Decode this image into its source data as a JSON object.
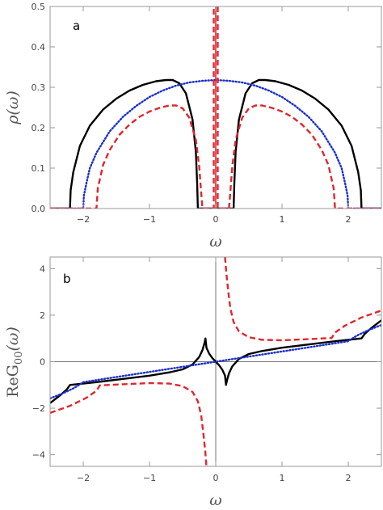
{
  "chart_data": [
    {
      "type": "line",
      "panel_label": "a",
      "xlabel": "ω",
      "ylabel": "ρ(ω)",
      "xlim": [
        -2.5,
        2.5
      ],
      "ylim": [
        0,
        0.5
      ],
      "xticks": [
        -2,
        -1,
        0,
        1,
        2
      ],
      "xtick_labels": [
        "−2",
        "−1",
        "0",
        "1",
        "2"
      ],
      "yticks": [
        0.0,
        0.1,
        0.2,
        0.3,
        0.4,
        0.5
      ],
      "ytick_labels": [
        "0.0",
        "0.1",
        "0.2",
        "0.3",
        "0.4",
        "0.5"
      ],
      "series": [
        {
          "style": "solid",
          "color": "#000000",
          "points": [
            [
              -2.5,
              0
            ],
            [
              -2.2,
              0
            ],
            [
              -2.19,
              0.045
            ],
            [
              -2.15,
              0.09
            ],
            [
              -2.05,
              0.155
            ],
            [
              -1.9,
              0.205
            ],
            [
              -1.7,
              0.245
            ],
            [
              -1.5,
              0.272
            ],
            [
              -1.3,
              0.292
            ],
            [
              -1.1,
              0.306
            ],
            [
              -0.9,
              0.315
            ],
            [
              -0.75,
              0.318
            ],
            [
              -0.65,
              0.318
            ],
            [
              -0.55,
              0.31
            ],
            [
              -0.45,
              0.285
            ],
            [
              -0.35,
              0.22
            ],
            [
              -0.3,
              0.14
            ],
            [
              -0.28,
              0.06
            ],
            [
              -0.27,
              0
            ],
            [
              -0.25,
              0
            ],
            [
              0.25,
              0
            ],
            [
              0.27,
              0
            ],
            [
              0.28,
              0.06
            ],
            [
              0.3,
              0.14
            ],
            [
              0.35,
              0.22
            ],
            [
              0.45,
              0.285
            ],
            [
              0.55,
              0.31
            ],
            [
              0.65,
              0.318
            ],
            [
              0.75,
              0.318
            ],
            [
              0.9,
              0.315
            ],
            [
              1.1,
              0.306
            ],
            [
              1.3,
              0.292
            ],
            [
              1.5,
              0.272
            ],
            [
              1.7,
              0.245
            ],
            [
              1.9,
              0.205
            ],
            [
              2.05,
              0.155
            ],
            [
              2.15,
              0.09
            ],
            [
              2.19,
              0.045
            ],
            [
              2.2,
              0
            ],
            [
              2.5,
              0
            ]
          ]
        },
        {
          "style": "dotted",
          "color": "#1a2fcc",
          "points": [
            [
              -2.5,
              0
            ],
            [
              -2.0,
              0
            ],
            [
              -1.99,
              0.032
            ],
            [
              -1.95,
              0.064
            ],
            [
              -1.9,
              0.1
            ],
            [
              -1.8,
              0.138
            ],
            [
              -1.6,
              0.191
            ],
            [
              -1.4,
              0.227
            ],
            [
              -1.2,
              0.254
            ],
            [
              -1.0,
              0.276
            ],
            [
              -0.8,
              0.292
            ],
            [
              -0.6,
              0.304
            ],
            [
              -0.4,
              0.312
            ],
            [
              -0.2,
              0.316
            ],
            [
              0,
              0.318
            ],
            [
              0.2,
              0.316
            ],
            [
              0.4,
              0.312
            ],
            [
              0.6,
              0.304
            ],
            [
              0.8,
              0.292
            ],
            [
              1.0,
              0.276
            ],
            [
              1.2,
              0.254
            ],
            [
              1.4,
              0.227
            ],
            [
              1.6,
              0.191
            ],
            [
              1.8,
              0.138
            ],
            [
              1.9,
              0.1
            ],
            [
              1.95,
              0.064
            ],
            [
              1.99,
              0.032
            ],
            [
              2.0,
              0
            ],
            [
              2.5,
              0
            ]
          ]
        },
        {
          "style": "dashed",
          "color": "#e0262f",
          "points": [
            [
              -2.5,
              0
            ],
            [
              -1.8,
              0
            ],
            [
              -1.78,
              0.05
            ],
            [
              -1.7,
              0.108
            ],
            [
              -1.6,
              0.145
            ],
            [
              -1.45,
              0.183
            ],
            [
              -1.3,
              0.208
            ],
            [
              -1.15,
              0.227
            ],
            [
              -1.0,
              0.24
            ],
            [
              -0.85,
              0.249
            ],
            [
              -0.7,
              0.255
            ],
            [
              -0.6,
              0.255
            ],
            [
              -0.5,
              0.248
            ],
            [
              -0.4,
              0.225
            ],
            [
              -0.3,
              0.17
            ],
            [
              -0.25,
              0.105
            ],
            [
              -0.22,
              0.04
            ],
            [
              -0.2,
              0
            ],
            [
              -0.03,
              0
            ],
            [
              -0.03,
              0.5
            ]
          ]
        },
        {
          "style": "dashed",
          "color": "#e0262f",
          "points": [
            [
              0.03,
              0.5
            ],
            [
              0.03,
              0
            ],
            [
              0.2,
              0
            ],
            [
              0.22,
              0.04
            ],
            [
              0.25,
              0.105
            ],
            [
              0.3,
              0.17
            ],
            [
              0.4,
              0.225
            ],
            [
              0.5,
              0.248
            ],
            [
              0.6,
              0.255
            ],
            [
              0.7,
              0.255
            ],
            [
              0.85,
              0.249
            ],
            [
              1.0,
              0.24
            ],
            [
              1.15,
              0.227
            ],
            [
              1.3,
              0.208
            ],
            [
              1.45,
              0.183
            ],
            [
              1.6,
              0.145
            ],
            [
              1.7,
              0.108
            ],
            [
              1.78,
              0.05
            ],
            [
              1.8,
              0
            ],
            [
              2.5,
              0
            ]
          ]
        },
        {
          "style": "solid-thin",
          "color": "#e0262f",
          "points": [
            [
              0,
              0
            ],
            [
              0,
              0.5
            ]
          ]
        }
      ]
    },
    {
      "type": "line",
      "panel_label": "b",
      "xlabel": "ω",
      "ylabel": "ReG00(ω)",
      "ylabel_main": "ReG",
      "ylabel_sub": "00",
      "ylabel_tail": "(ω)",
      "xlim": [
        -2.5,
        2.5
      ],
      "ylim": [
        -4.5,
        4.5
      ],
      "xticks": [
        -2,
        -1,
        0,
        1,
        2
      ],
      "xtick_labels": [
        "−2",
        "−1",
        "0",
        "1",
        "2"
      ],
      "yticks": [
        -4,
        -2,
        0,
        2,
        4
      ],
      "ytick_labels": [
        "−4",
        "−2",
        "0",
        "2",
        "4"
      ],
      "series": [
        {
          "style": "solid",
          "color": "#000000",
          "points": [
            [
              -2.5,
              -1.78
            ],
            [
              -2.35,
              -1.45
            ],
            [
              -2.25,
              -1.2
            ],
            [
              -2.2,
              -1.0
            ],
            [
              -1.8,
              -0.88
            ],
            [
              -1.4,
              -0.74
            ],
            [
              -1.0,
              -0.6
            ],
            [
              -0.7,
              -0.46
            ],
            [
              -0.5,
              -0.33
            ],
            [
              -0.35,
              -0.12
            ],
            [
              -0.25,
              0.2
            ],
            [
              -0.2,
              0.5
            ],
            [
              -0.17,
              0.8
            ],
            [
              -0.155,
              1.0
            ],
            [
              -0.14,
              0.6
            ],
            [
              -0.1,
              0.35
            ],
            [
              -0.05,
              0.15
            ],
            [
              0,
              0
            ],
            [
              0.05,
              -0.15
            ],
            [
              0.1,
              -0.35
            ],
            [
              0.14,
              -0.6
            ],
            [
              0.155,
              -1.0
            ],
            [
              0.17,
              -0.8
            ],
            [
              0.2,
              -0.5
            ],
            [
              0.25,
              -0.2
            ],
            [
              0.35,
              0.12
            ],
            [
              0.5,
              0.33
            ],
            [
              0.7,
              0.46
            ],
            [
              1.0,
              0.6
            ],
            [
              1.4,
              0.74
            ],
            [
              1.8,
              0.88
            ],
            [
              2.2,
              1.0
            ],
            [
              2.25,
              1.2
            ],
            [
              2.35,
              1.45
            ],
            [
              2.5,
              1.78
            ]
          ]
        },
        {
          "style": "dotted",
          "color": "#1a2fcc",
          "points": [
            [
              -2.5,
              -1.58
            ],
            [
              -2.3,
              -1.35
            ],
            [
              -2.15,
              -1.15
            ],
            [
              -2.05,
              -0.98
            ],
            [
              -2.0,
              -0.88
            ],
            [
              -1.5,
              -0.66
            ],
            [
              -1.0,
              -0.44
            ],
            [
              -0.5,
              -0.22
            ],
            [
              0,
              0
            ],
            [
              0.5,
              0.22
            ],
            [
              1.0,
              0.44
            ],
            [
              1.5,
              0.66
            ],
            [
              2.0,
              0.88
            ],
            [
              2.05,
              0.98
            ],
            [
              2.15,
              1.15
            ],
            [
              2.3,
              1.35
            ],
            [
              2.5,
              1.58
            ]
          ]
        },
        {
          "style": "dashed",
          "color": "#e0262f",
          "points": [
            [
              -2.5,
              -2.2
            ],
            [
              -2.2,
              -1.9
            ],
            [
              -1.95,
              -1.55
            ],
            [
              -1.8,
              -1.25
            ],
            [
              -1.75,
              -1.02
            ],
            [
              -1.4,
              -0.97
            ],
            [
              -1.0,
              -0.92
            ],
            [
              -0.7,
              -0.94
            ],
            [
              -0.5,
              -1.05
            ],
            [
              -0.35,
              -1.3
            ],
            [
              -0.27,
              -1.7
            ],
            [
              -0.22,
              -2.3
            ],
            [
              -0.19,
              -3.0
            ],
            [
              -0.16,
              -3.8
            ],
            [
              -0.14,
              -4.5
            ]
          ]
        },
        {
          "style": "dashed",
          "color": "#e0262f",
          "points": [
            [
              0.14,
              4.5
            ],
            [
              0.16,
              3.8
            ],
            [
              0.19,
              3.0
            ],
            [
              0.22,
              2.3
            ],
            [
              0.27,
              1.7
            ],
            [
              0.35,
              1.3
            ],
            [
              0.5,
              1.05
            ],
            [
              0.7,
              0.94
            ],
            [
              1.0,
              0.92
            ],
            [
              1.4,
              0.97
            ],
            [
              1.75,
              1.02
            ],
            [
              1.8,
              1.25
            ],
            [
              1.95,
              1.55
            ],
            [
              2.2,
              1.9
            ],
            [
              2.5,
              2.2
            ]
          ]
        }
      ]
    }
  ]
}
